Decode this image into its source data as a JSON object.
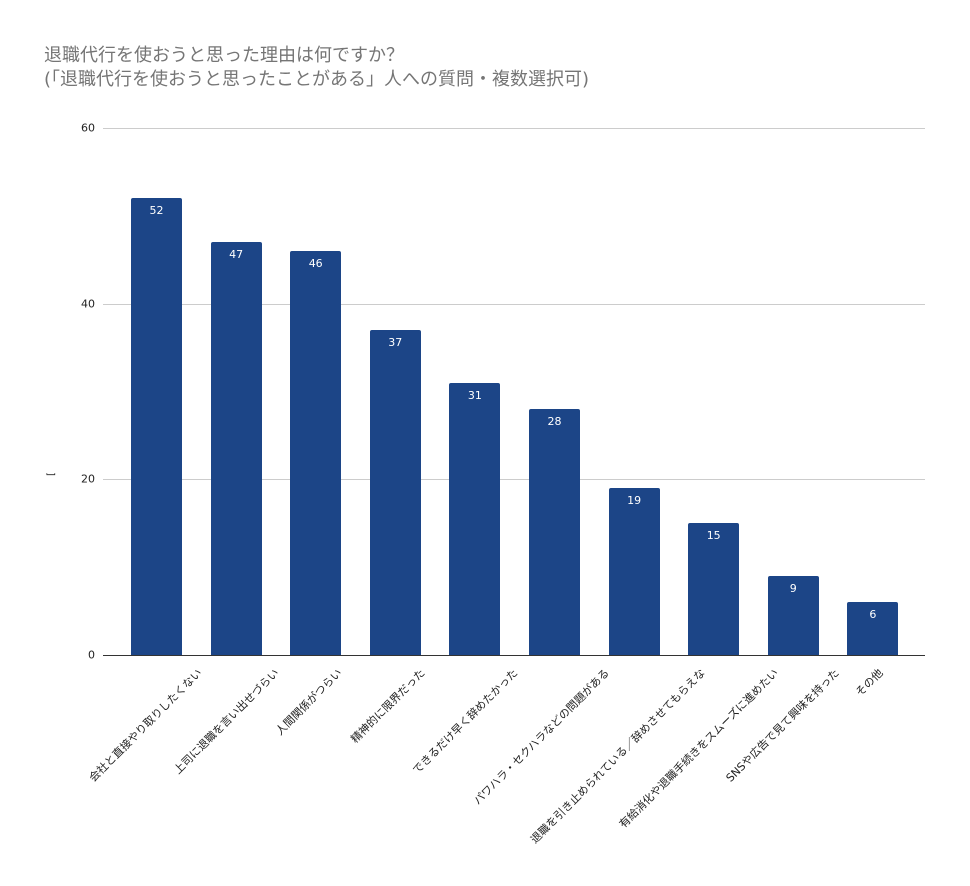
{
  "chart_data": {
    "type": "bar",
    "title": "退職代行を使おうと思った理由は何ですか？",
    "subtitle": "(「退職代行を使おうと思ったことがある」人への質問・複数選択可)",
    "xlabel": "",
    "ylabel": "[",
    "ylim": [
      0,
      60
    ],
    "yticks": [
      "0",
      "20",
      "40",
      "60"
    ],
    "grid": true,
    "legend": "none",
    "bar_color": "#1c4587",
    "categories": [
      "会社と直接やり取りしたくない",
      "上司に退職を言い出せづらい",
      "人間関係がつらい",
      "精神的に限界だった",
      "できるだけ早く辞めたかった",
      "パワハラ・セクハラなどの問題がある",
      "退職を引き止められている／辞めさせてもらえな",
      "有給消化や退職手続きをスムーズに進めたい",
      "SNSや広告で見て興味を持った",
      "その他"
    ],
    "values": [
      52,
      47,
      46,
      37,
      31,
      28,
      19,
      15,
      9,
      6
    ]
  }
}
